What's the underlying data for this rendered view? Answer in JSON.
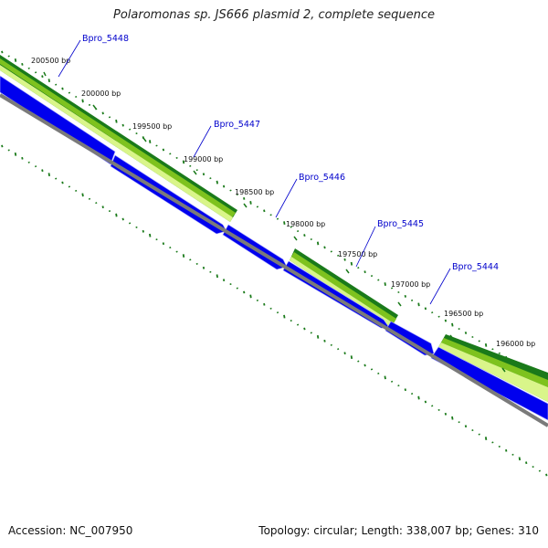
{
  "header": {
    "title": "Polaromonas sp. JS666 plasmid 2, complete sequence"
  },
  "ticks": [
    "200500 bp",
    "200000 bp",
    "199500 bp",
    "199000 bp",
    "198500 bp",
    "198000 bp",
    "197500 bp",
    "197000 bp",
    "196500 bp",
    "196000 bp"
  ],
  "genes": [
    "Bpro_5448",
    "Bpro_5447",
    "Bpro_5446",
    "Bpro_5445",
    "Bpro_5444"
  ],
  "footer": {
    "accession": "Accession: NC_007950",
    "summary": "Topology: circular; Length: 338,007 bp; Genes: 310"
  },
  "colors": {
    "cds": "#0000ee",
    "gc_dark": "#1a7a1a",
    "gc_mid": "#7ec21e",
    "gc_light": "#d9f58a",
    "backbone": "#7a7a7a",
    "gene_label": "#0000cc"
  }
}
